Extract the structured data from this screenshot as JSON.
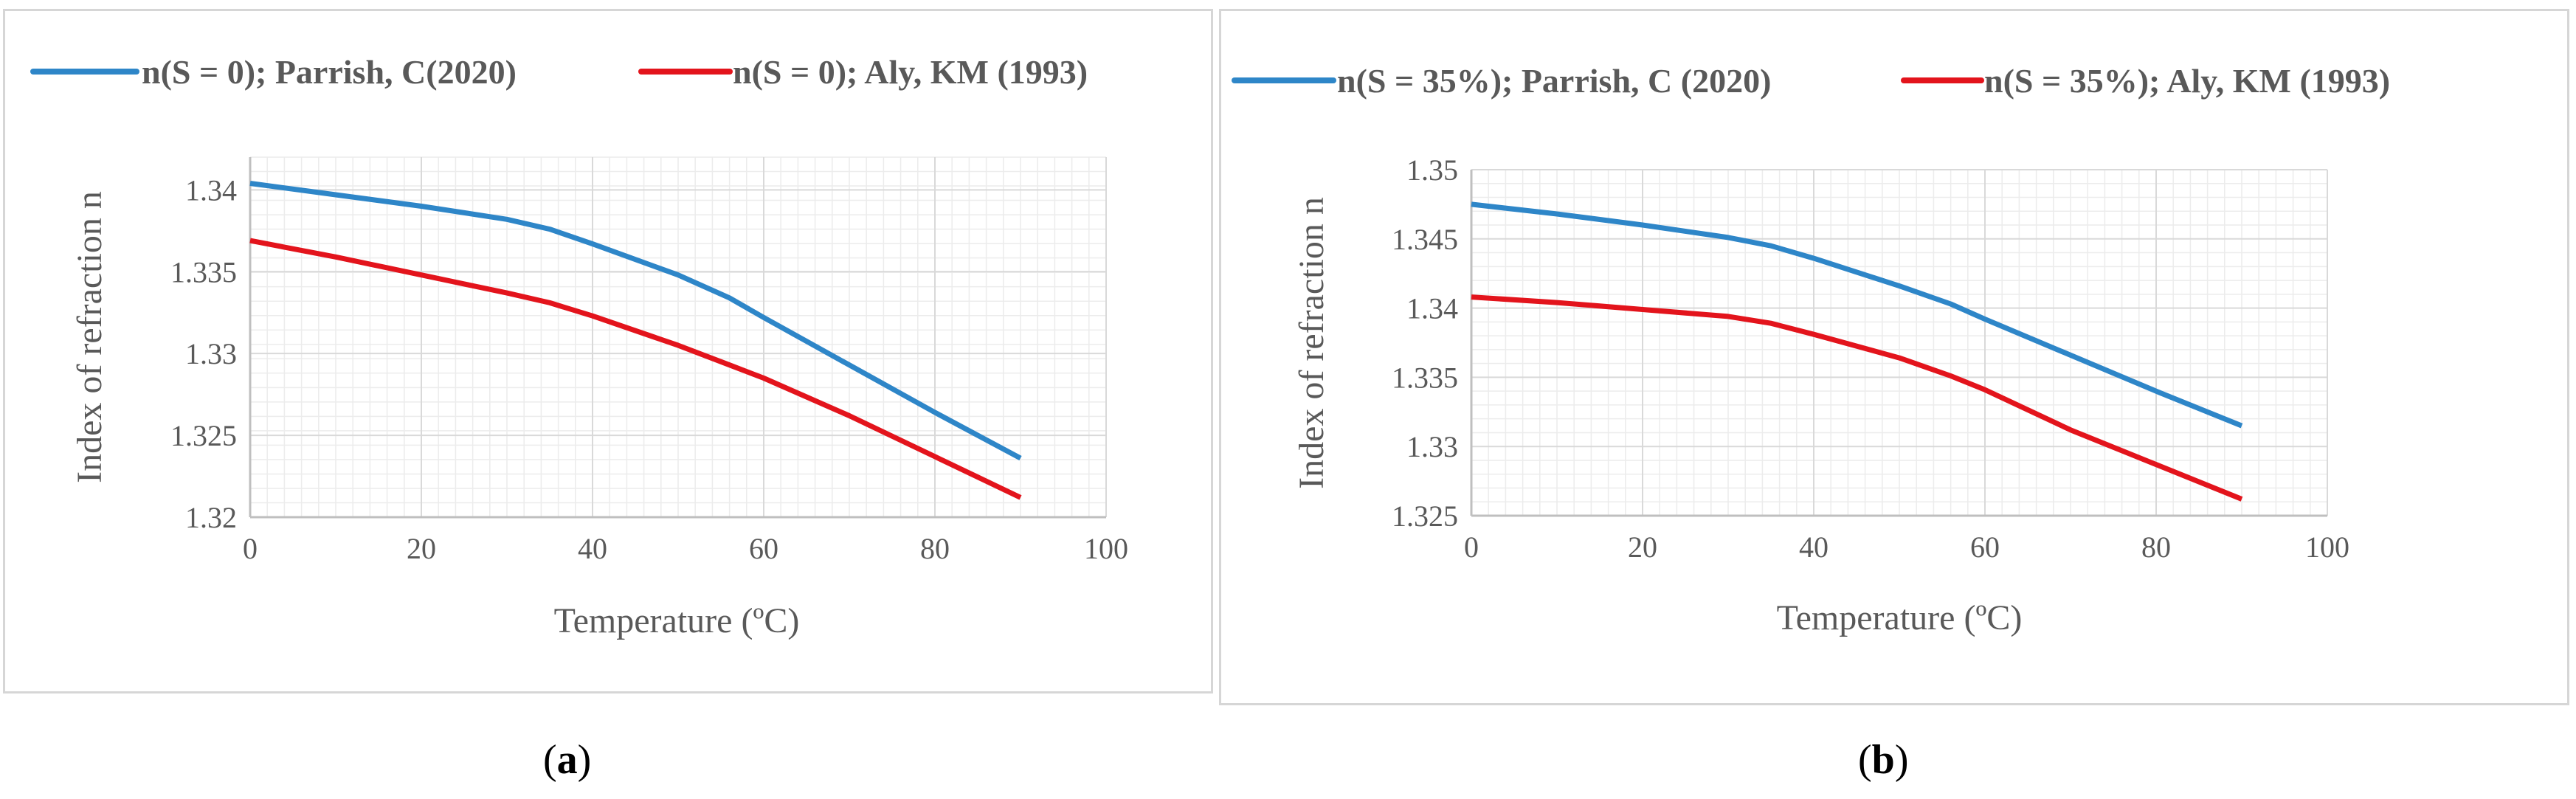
{
  "charts": [
    {
      "id": "a",
      "caption": "a",
      "chart_data": {
        "type": "line",
        "xlabel": "Temperature (ºC)",
        "ylabel": "Index of refraction n",
        "xlim": [
          0,
          100
        ],
        "ylim": [
          1.32,
          1.342
        ],
        "xticks": [
          0,
          20,
          40,
          60,
          80,
          100
        ],
        "yticks": [
          1.32,
          1.325,
          1.33,
          1.335,
          1.34
        ],
        "ytick_labels": [
          "1.32",
          "1.325",
          "1.33",
          "1.335",
          "1.34"
        ],
        "xtick_labels": [
          "0",
          "20",
          "40",
          "60",
          "80",
          "100"
        ],
        "grid": true,
        "legend_position": "top",
        "series": [
          {
            "name": "n(S = 0); Parrish, C(2020)",
            "color": "#2E86C8",
            "x": [
              0,
              10,
              20,
              30,
              35,
              40,
              50,
              56,
              60,
              70,
              80,
              90
            ],
            "y": [
              1.3404,
              1.3397,
              1.339,
              1.3382,
              1.3376,
              1.3367,
              1.3348,
              1.3334,
              1.3322,
              1.3293,
              1.3264,
              1.3236
            ]
          },
          {
            "name": "n(S = 0); Aly, KM (1993)",
            "color": "#E3141C",
            "x": [
              0,
              10,
              20,
              30,
              35,
              40,
              50,
              56,
              60,
              70,
              80,
              90
            ],
            "y": [
              1.3369,
              1.3359,
              1.3348,
              1.3337,
              1.3331,
              1.3323,
              1.3305,
              1.3293,
              1.3285,
              1.3262,
              1.3237,
              1.3212
            ]
          }
        ]
      }
    },
    {
      "id": "b",
      "caption": "b",
      "chart_data": {
        "type": "line",
        "xlabel": "Temperature (ºC)",
        "ylabel": "Index of refraction n",
        "xlim": [
          0,
          100
        ],
        "ylim": [
          1.325,
          1.35
        ],
        "xticks": [
          0,
          20,
          40,
          60,
          80,
          100
        ],
        "yticks": [
          1.325,
          1.33,
          1.335,
          1.34,
          1.345,
          1.35
        ],
        "ytick_labels": [
          "1.325",
          "1.33",
          "1.335",
          "1.34",
          "1.345",
          "1.35"
        ],
        "xtick_labels": [
          "0",
          "20",
          "40",
          "60",
          "80",
          "100"
        ],
        "grid": true,
        "legend_position": "top",
        "series": [
          {
            "name": "n(S = 35%); Parrish, C (2020)",
            "color": "#2E86C8",
            "x": [
              0,
              10,
              20,
              30,
              35,
              40,
              50,
              56,
              60,
              70,
              80,
              90
            ],
            "y": [
              1.3475,
              1.3468,
              1.346,
              1.3451,
              1.3445,
              1.3436,
              1.3416,
              1.3403,
              1.3392,
              1.3366,
              1.334,
              1.3315
            ]
          },
          {
            "name": "n(S = 35%); Aly, KM (1993)",
            "color": "#E3141C",
            "x": [
              0,
              10,
              20,
              30,
              35,
              40,
              50,
              56,
              60,
              70,
              80,
              90
            ],
            "y": [
              1.3408,
              1.3404,
              1.3399,
              1.3394,
              1.3389,
              1.3381,
              1.3364,
              1.3351,
              1.3341,
              1.3312,
              1.3287,
              1.3262
            ]
          }
        ]
      }
    }
  ]
}
